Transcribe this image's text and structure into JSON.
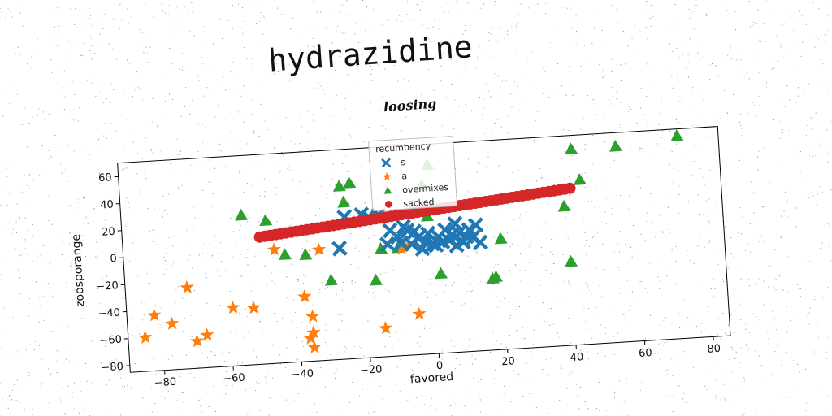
{
  "page_title": "hydrazidine",
  "chart_data": {
    "type": "scatter",
    "title": "loosing",
    "xlabel": "favored",
    "ylabel": "zoosporange",
    "xlim": [
      -90,
      85
    ],
    "ylim": [
      -85,
      70
    ],
    "xticks": [
      -80,
      -60,
      -40,
      -20,
      0,
      20,
      40,
      60,
      80
    ],
    "yticks": [
      -80,
      -60,
      -40,
      -20,
      0,
      20,
      40,
      60
    ],
    "grid": false,
    "legend": {
      "title": "recumbency",
      "placement": "top-center"
    },
    "series": [
      {
        "name": "s",
        "marker": "X",
        "color": "#1f77b4",
        "points": [
          [
            -27,
            -3
          ],
          [
            -25,
            20
          ],
          [
            -20,
            21
          ],
          [
            -18,
            19
          ],
          [
            -15,
            20
          ],
          [
            -13,
            -2
          ],
          [
            -12,
            8
          ],
          [
            -10,
            3
          ],
          [
            -9,
            -2
          ],
          [
            -8,
            10
          ],
          [
            -7,
            7
          ],
          [
            -6,
            -3
          ],
          [
            -5,
            6
          ],
          [
            -4,
            1
          ],
          [
            -3,
            -7
          ],
          [
            -2,
            -2
          ],
          [
            -1,
            4
          ],
          [
            0,
            -4
          ],
          [
            1,
            -5
          ],
          [
            2,
            1
          ],
          [
            3,
            -3
          ],
          [
            4,
            6
          ],
          [
            5,
            -2
          ],
          [
            6,
            2
          ],
          [
            7,
            10
          ],
          [
            7,
            -6
          ],
          [
            8,
            3
          ],
          [
            9,
            -4
          ],
          [
            10,
            0
          ],
          [
            11,
            5
          ],
          [
            12,
            -1
          ],
          [
            13,
            8
          ],
          [
            14,
            -5
          ]
        ]
      },
      {
        "name": "a",
        "marker": "*",
        "color": "#ff7f0e",
        "points": [
          [
            -85,
            -60
          ],
          [
            -82,
            -44
          ],
          [
            -77,
            -51
          ],
          [
            -72,
            -25
          ],
          [
            -70,
            -65
          ],
          [
            -67,
            -61
          ],
          [
            -59,
            -42
          ],
          [
            -53,
            -43
          ],
          [
            -46,
            -1
          ],
          [
            -38,
            -37
          ],
          [
            -37,
            -68
          ],
          [
            -36,
            -75
          ],
          [
            -36,
            -52
          ],
          [
            -36,
            -64
          ],
          [
            -33,
            -3
          ],
          [
            -15,
            -64
          ],
          [
            -5,
            -55
          ],
          [
            -9,
            -6
          ],
          [
            -8,
            -4
          ]
        ]
      },
      {
        "name": "overmixes",
        "marker": "^",
        "color": "#2ca02c",
        "points": [
          [
            -55,
            26
          ],
          [
            -48,
            21
          ],
          [
            -43,
            -5
          ],
          [
            -37,
            -6
          ],
          [
            -30,
            -26
          ],
          [
            -26,
            43
          ],
          [
            -25,
            31
          ],
          [
            -23,
            45
          ],
          [
            -17,
            -28
          ],
          [
            -15,
            -5
          ],
          [
            -10,
            -5
          ],
          [
            -5,
            25
          ],
          [
            -2,
            40
          ],
          [
            0,
            55
          ],
          [
            2,
            -26
          ],
          [
            -1,
            17
          ],
          [
            17,
            -32
          ],
          [
            18,
            -31
          ],
          [
            20,
            -3
          ],
          [
            39,
            18
          ],
          [
            40,
            -23
          ],
          [
            42,
            60
          ],
          [
            44,
            37
          ],
          [
            55,
            60
          ],
          [
            73,
            65
          ]
        ]
      },
      {
        "name": "sacked",
        "marker": "o",
        "color": "#d62728",
        "line": {
          "x_from": -50,
          "x_to": 41,
          "y_from": 9,
          "y_to": 31,
          "count": 60
        }
      }
    ]
  }
}
